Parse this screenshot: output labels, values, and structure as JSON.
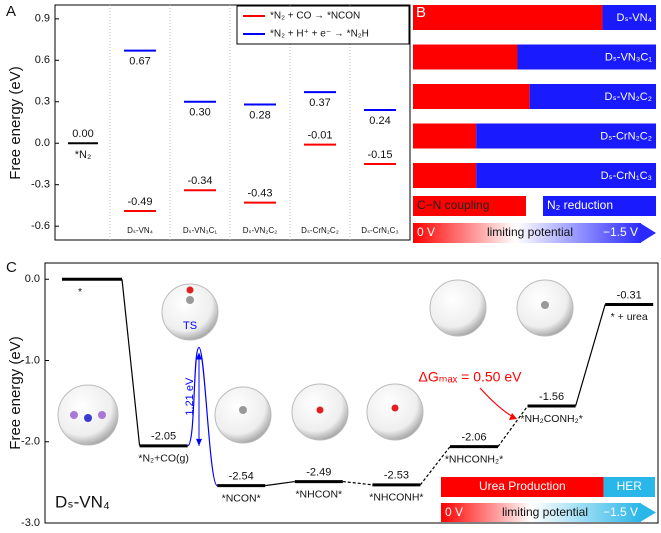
{
  "chart_data": [
    {
      "panel": "A",
      "type": "energy-levels",
      "ylabel": "Free energy (eV)",
      "ylim": [
        -0.7,
        1.0
      ],
      "yticks": [
        0.9,
        0.6,
        0.3,
        {
          "value": 0,
          "label": "0.0"
        },
        -0.3,
        -0.6
      ],
      "initial": {
        "label": "*N₂",
        "value": 0,
        "value_label": "0.00",
        "color": "#000000"
      },
      "categories": [
        "Dₛ-VN₄",
        "Dₛ-VN₃C₁",
        "Dₛ-VN₂C₂",
        "Dₛ-CrN₂C₂",
        "Dₛ-CrN₁C₃"
      ],
      "series": [
        {
          "name": "*N₂ + CO → *NCON",
          "color": "#ff0000",
          "values": [
            -0.49,
            -0.34,
            -0.43,
            -0.01,
            -0.15
          ],
          "value_labels": [
            "-0.49",
            "-0.34",
            "-0.43",
            "-0.01",
            "-0.15"
          ]
        },
        {
          "name": "*N₂ + H⁺ + e⁻ → *N₂H",
          "color": "#0000ff",
          "values": [
            0.67,
            0.3,
            0.28,
            0.37,
            0.24
          ],
          "value_labels": [
            "0.67",
            "0.30",
            "0.28",
            "0.37",
            "0.24"
          ]
        }
      ],
      "legend": "upper right"
    },
    {
      "panel": "B",
      "type": "stacked-barh",
      "categories": [
        "Dₛ-VN₄",
        "Dₛ-VN₃C₁",
        "Dₛ-VN₂C₂",
        "Dₛ-CrN₂C₂",
        "Dₛ-CrN₁C₃"
      ],
      "xlim": [
        0,
        1
      ],
      "series": [
        {
          "name": "C−N coupling",
          "color": "#ff0000",
          "values": [
            0.78,
            0.43,
            0.48,
            0.26,
            0.26
          ]
        },
        {
          "name": "N₂ reduction",
          "color": "#1a1aff",
          "values": [
            0.22,
            0.57,
            0.52,
            0.74,
            0.74
          ]
        }
      ],
      "scale": {
        "start": "0 V",
        "label": "limiting potential",
        "end": "−1.5 V"
      }
    },
    {
      "panel": "C",
      "type": "energy-profile",
      "ylabel": "Free energy (eV)",
      "ylim": [
        -3.0,
        0.2
      ],
      "yticks": [
        {
          "value": 0,
          "label": "0.0"
        },
        {
          "value": -1,
          "label": "-1.0"
        },
        {
          "value": -2,
          "label": "-2.0"
        },
        {
          "value": -3,
          "label": "-3.0"
        }
      ],
      "categories": [
        "*",
        "*N₂+CO(g)",
        "*NCON*",
        "*NHCON*",
        "*NHCONH*",
        "*NHCONH₂*",
        "*NH₂CONH₂*",
        "* + urea"
      ],
      "values": [
        0,
        -2.05,
        -2.54,
        -2.49,
        -2.53,
        -2.06,
        -1.56,
        -0.31
      ],
      "value_labels": [
        null,
        "-2.05",
        "-2.54",
        "-2.49",
        "-2.53",
        "-2.06",
        "-1.56",
        "-0.31"
      ],
      "color": "#000000",
      "ts": {
        "value": -0.84,
        "label": "TS",
        "barrier_label": "1.21 eV",
        "color": "#0000ff"
      },
      "annotation": {
        "text": "ΔGₘₐₓ = 0.50 eV",
        "color": "#ff0000"
      },
      "catalyst": "Dₛ-VN₄",
      "selectivity": {
        "series": [
          {
            "name": "Urea Production",
            "color": "#ff0000",
            "values": [
              0.76
            ]
          },
          {
            "name": "HER",
            "color": "#29b6e8",
            "values": [
              0.24
            ]
          }
        ]
      },
      "scale": {
        "start": "0 V",
        "label": "limiting potential",
        "end": "−1.5 V"
      }
    }
  ]
}
